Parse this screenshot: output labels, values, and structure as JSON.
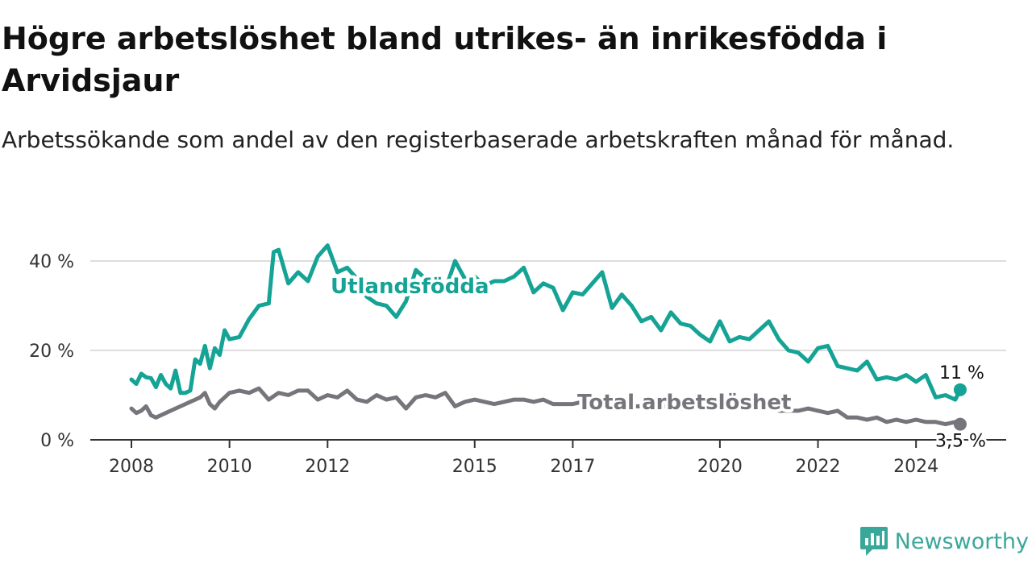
{
  "title": "Högre arbetslöshet bland utrikes- än inrikesfödda i Arvidsjaur",
  "subtitle": "Arbetssökande som andel av den registerbaserade arbetskraften månad för månad.",
  "brand": "Newsworthy",
  "colors": {
    "foreign": "#15a396",
    "total": "#77757b",
    "grid": "#dddddd",
    "axis": "#333333",
    "brand": "#3aa79b"
  },
  "icons": {
    "brand": "newsworthy-chart-bubble-icon"
  },
  "chart_data": {
    "type": "line",
    "xlim": [
      2008.0,
      2025.0
    ],
    "ylim": [
      0,
      40
    ],
    "y_ticks": [
      0,
      20,
      40
    ],
    "y_tick_labels": [
      "0 %",
      "20 %",
      "40 %"
    ],
    "x_ticks": [
      2008,
      2010,
      2012,
      2015,
      2017,
      2020,
      2022,
      2024
    ],
    "x_tick_labels": [
      "2008",
      "2010",
      "2012",
      "2015",
      "2017",
      "2020",
      "2022",
      "2024"
    ],
    "grid": true,
    "series": [
      {
        "name": "Utlandsfödda",
        "end_label": "11 %",
        "x": [
          2008.0,
          2008.1,
          2008.2,
          2008.3,
          2008.4,
          2008.5,
          2008.6,
          2008.7,
          2008.8,
          2008.9,
          2009.0,
          2009.1,
          2009.2,
          2009.3,
          2009.4,
          2009.5,
          2009.6,
          2009.7,
          2009.8,
          2009.9,
          2010.0,
          2010.2,
          2010.4,
          2010.6,
          2010.8,
          2010.9,
          2011.0,
          2011.2,
          2011.4,
          2011.6,
          2011.8,
          2012.0,
          2012.2,
          2012.4,
          2012.6,
          2012.8,
          2013.0,
          2013.2,
          2013.4,
          2013.6,
          2013.8,
          2014.0,
          2014.2,
          2014.4,
          2014.6,
          2014.8,
          2015.0,
          2015.2,
          2015.4,
          2015.6,
          2015.8,
          2016.0,
          2016.2,
          2016.4,
          2016.6,
          2016.8,
          2017.0,
          2017.2,
          2017.4,
          2017.6,
          2017.8,
          2018.0,
          2018.2,
          2018.4,
          2018.6,
          2018.8,
          2019.0,
          2019.2,
          2019.4,
          2019.6,
          2019.8,
          2020.0,
          2020.2,
          2020.4,
          2020.6,
          2020.8,
          2021.0,
          2021.2,
          2021.4,
          2021.6,
          2021.8,
          2022.0,
          2022.2,
          2022.4,
          2022.6,
          2022.8,
          2023.0,
          2023.2,
          2023.4,
          2023.6,
          2023.8,
          2024.0,
          2024.2,
          2024.4,
          2024.6,
          2024.8,
          2024.9
        ],
        "values": [
          13.5,
          12.5,
          14.8,
          14.0,
          13.8,
          11.8,
          14.5,
          12.5,
          11.5,
          15.5,
          10.5,
          10.5,
          11.0,
          18.0,
          17.0,
          21.0,
          16.0,
          20.5,
          19.0,
          24.5,
          22.5,
          23.0,
          27.0,
          30.0,
          30.5,
          42.0,
          42.5,
          35.0,
          37.5,
          35.5,
          41.0,
          43.5,
          37.5,
          38.5,
          36.0,
          32.0,
          30.5,
          30.0,
          27.5,
          31.0,
          38.0,
          36.0,
          35.0,
          33.5,
          40.0,
          36.0,
          36.5,
          34.5,
          35.5,
          35.5,
          36.5,
          38.5,
          33.0,
          35.0,
          34.0,
          29.0,
          33.0,
          32.5,
          35.0,
          37.5,
          29.5,
          32.5,
          30.0,
          26.5,
          27.5,
          24.5,
          28.5,
          26.0,
          25.5,
          23.5,
          22.0,
          26.5,
          22.0,
          23.0,
          22.5,
          24.5,
          26.5,
          22.5,
          20.0,
          19.5,
          17.5,
          20.5,
          21.0,
          16.5,
          16.0,
          15.5,
          17.5,
          13.5,
          14.0,
          13.5,
          14.5,
          13.0,
          14.5,
          9.5,
          10.0,
          9.0,
          11.2
        ]
      },
      {
        "name": "Total arbetslöshet",
        "end_label": "3,5 %",
        "x": [
          2008.0,
          2008.1,
          2008.2,
          2008.3,
          2008.4,
          2008.5,
          2008.6,
          2008.7,
          2008.8,
          2008.9,
          2009.0,
          2009.1,
          2009.2,
          2009.3,
          2009.4,
          2009.5,
          2009.6,
          2009.7,
          2009.8,
          2009.9,
          2010.0,
          2010.2,
          2010.4,
          2010.6,
          2010.8,
          2011.0,
          2011.2,
          2011.4,
          2011.6,
          2011.8,
          2012.0,
          2012.2,
          2012.4,
          2012.6,
          2012.8,
          2013.0,
          2013.2,
          2013.4,
          2013.6,
          2013.8,
          2014.0,
          2014.2,
          2014.4,
          2014.6,
          2014.8,
          2015.0,
          2015.2,
          2015.4,
          2015.6,
          2015.8,
          2016.0,
          2016.2,
          2016.4,
          2016.6,
          2016.8,
          2017.0,
          2017.2,
          2017.4,
          2017.6,
          2017.8,
          2018.0,
          2018.2,
          2018.4,
          2018.6,
          2018.8,
          2019.0,
          2019.2,
          2019.4,
          2019.6,
          2019.8,
          2020.0,
          2020.2,
          2020.4,
          2020.6,
          2020.8,
          2021.0,
          2021.2,
          2021.4,
          2021.6,
          2021.8,
          2022.0,
          2022.2,
          2022.4,
          2022.6,
          2022.8,
          2023.0,
          2023.2,
          2023.4,
          2023.6,
          2023.8,
          2024.0,
          2024.2,
          2024.4,
          2024.6,
          2024.8,
          2024.9
        ],
        "values": [
          7.0,
          6.0,
          6.5,
          7.5,
          5.5,
          5.0,
          5.5,
          6.0,
          6.5,
          7.0,
          7.5,
          8.0,
          8.5,
          9.0,
          9.5,
          10.5,
          8.0,
          7.0,
          8.5,
          9.5,
          10.5,
          11.0,
          10.5,
          11.5,
          9.0,
          10.5,
          10.0,
          11.0,
          11.0,
          9.0,
          10.0,
          9.5,
          11.0,
          9.0,
          8.5,
          10.0,
          9.0,
          9.5,
          7.0,
          9.5,
          10.0,
          9.5,
          10.5,
          7.5,
          8.5,
          9.0,
          8.5,
          8.0,
          8.5,
          9.0,
          9.0,
          8.5,
          9.0,
          8.0,
          8.0,
          8.0,
          8.5,
          8.0,
          7.5,
          8.0,
          8.0,
          7.5,
          7.5,
          7.0,
          7.5,
          7.5,
          7.0,
          7.5,
          7.0,
          7.0,
          7.0,
          7.5,
          7.0,
          7.0,
          7.0,
          7.0,
          6.5,
          6.5,
          6.5,
          7.0,
          6.5,
          6.0,
          6.5,
          5.0,
          5.0,
          4.5,
          5.0,
          4.0,
          4.5,
          4.0,
          4.5,
          4.0,
          4.0,
          3.5,
          4.0,
          3.5
        ]
      }
    ]
  }
}
